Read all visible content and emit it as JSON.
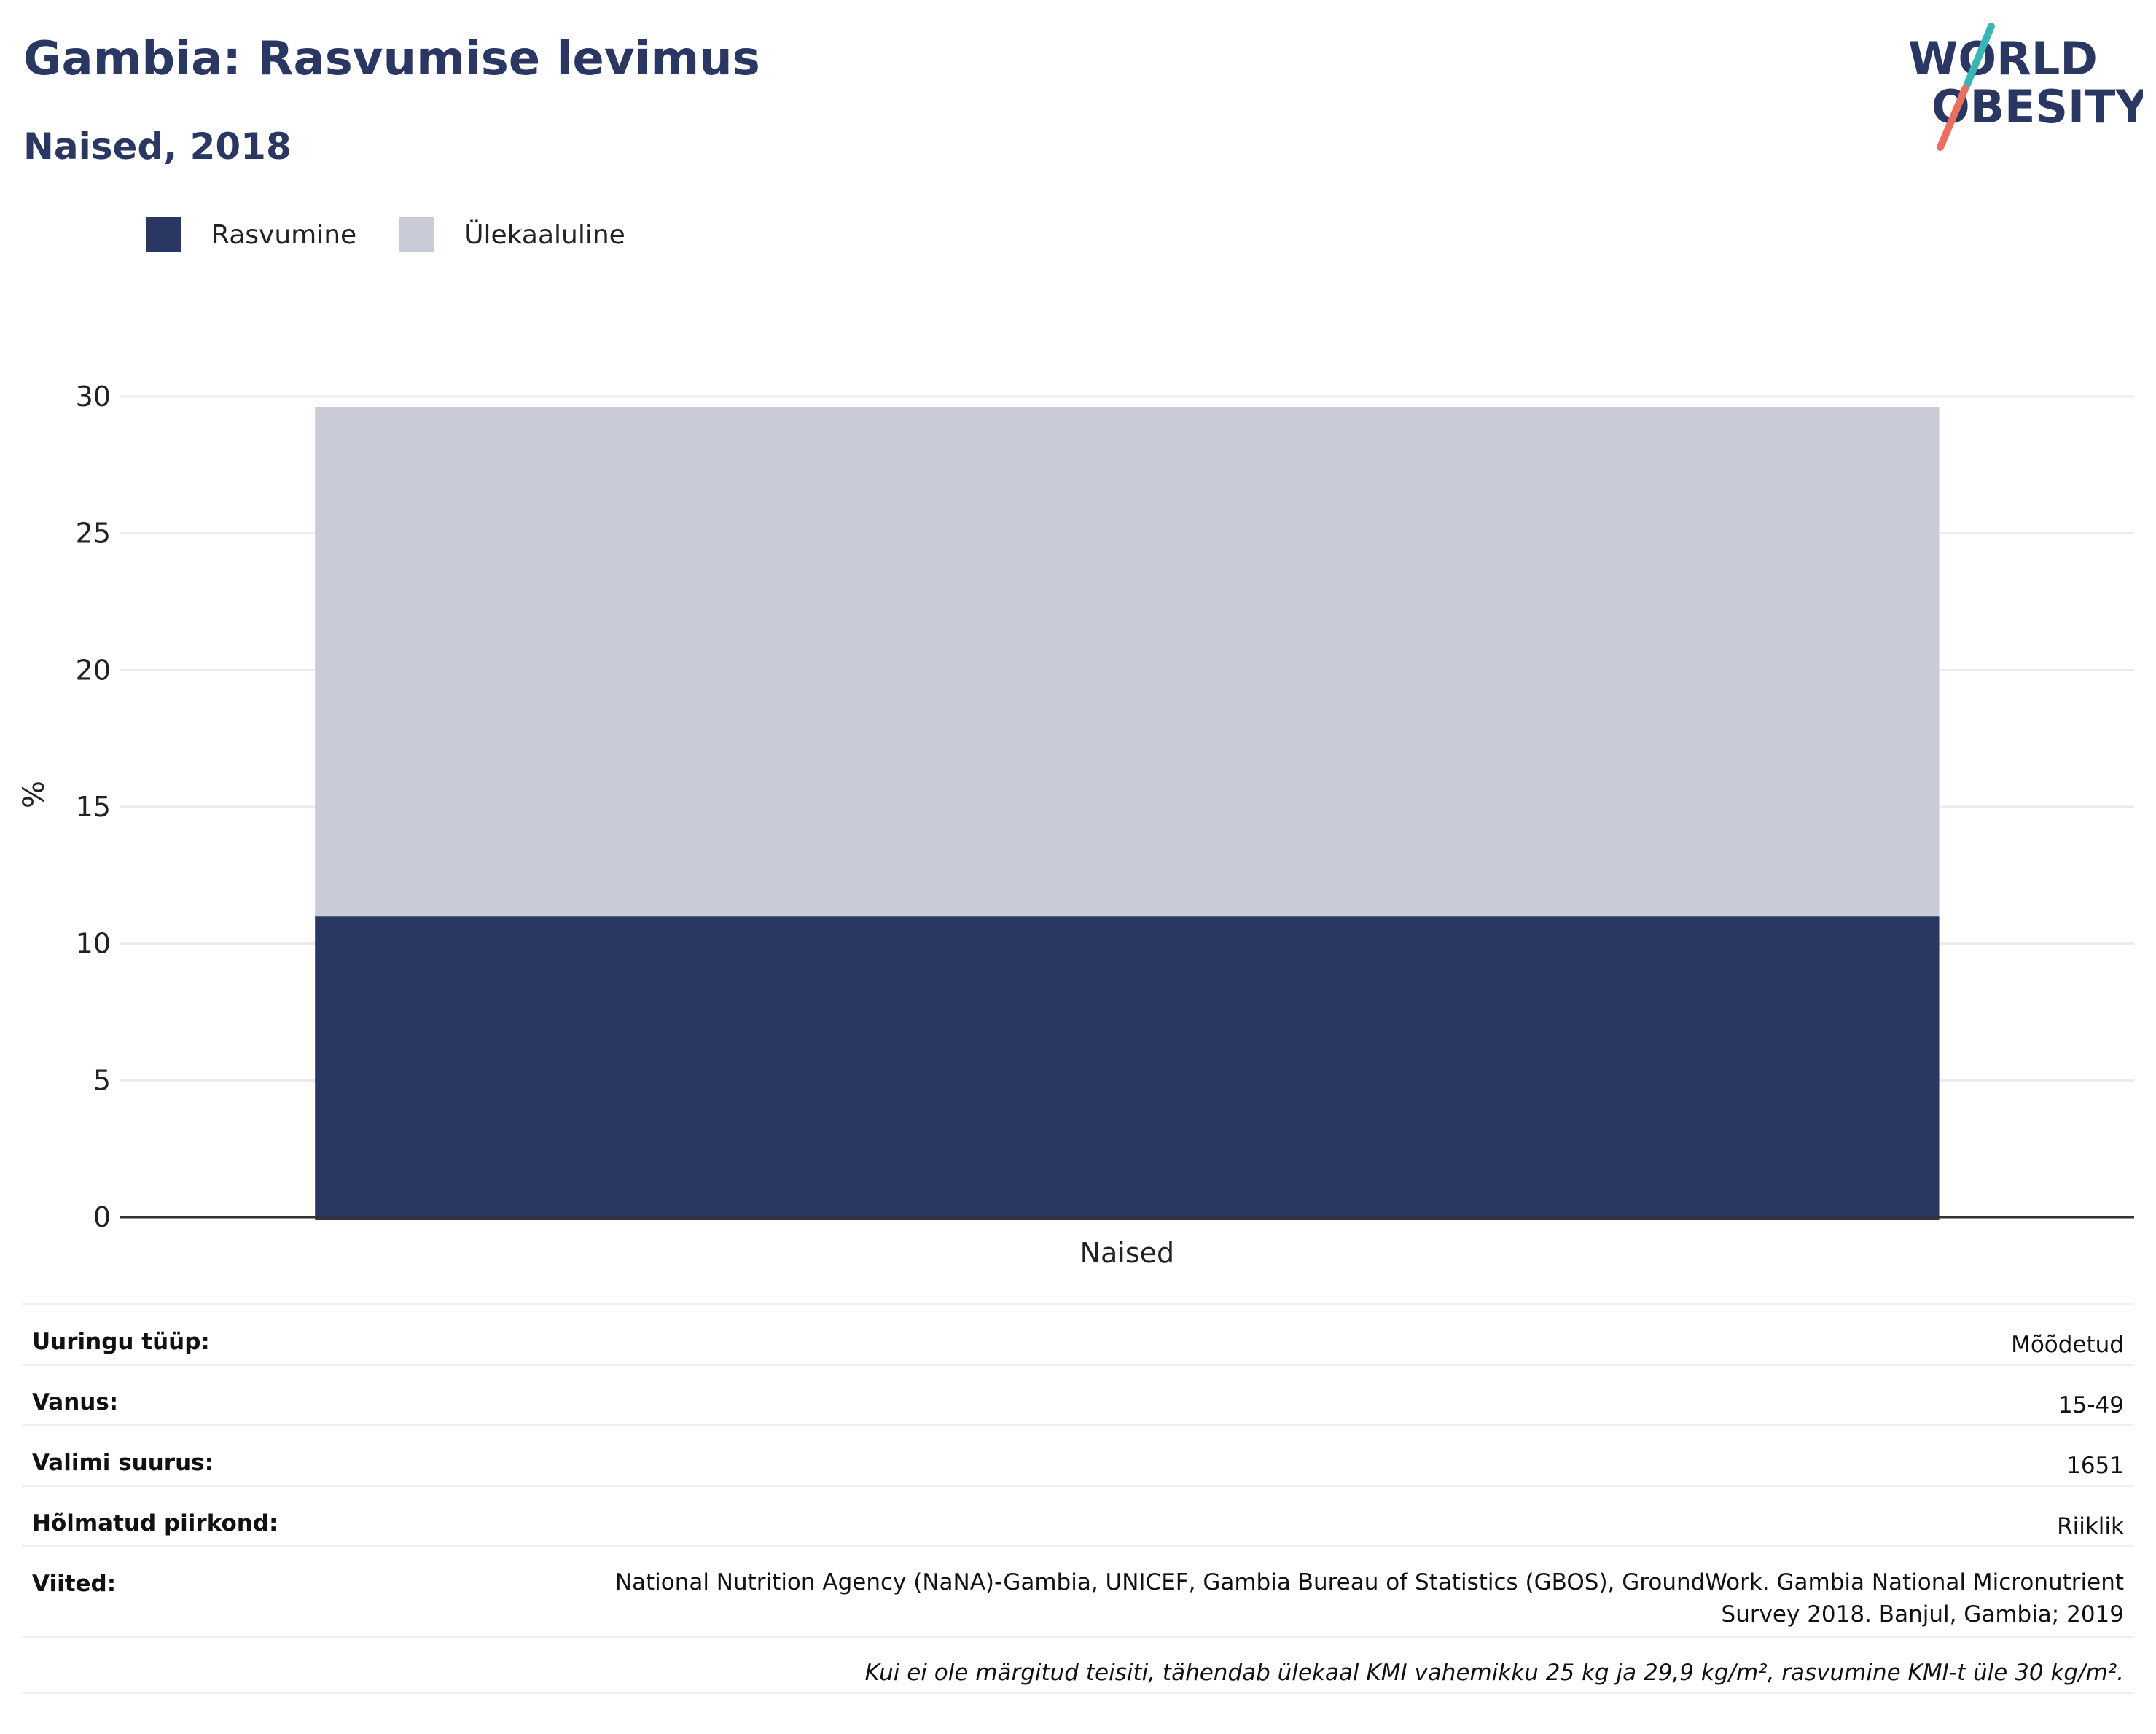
{
  "header": {
    "title": "Gambia: Rasvumise levimus",
    "subtitle": "Naised, 2018"
  },
  "logo": {
    "line1": "WORLD",
    "line2": "OBESITY"
  },
  "colors": {
    "obesity": "#2b3763",
    "overweight": "#c9ccd8",
    "title": "#2b3763",
    "logo_teal": "#3bb4b4",
    "logo_coral": "#e8705f"
  },
  "legend": {
    "items": [
      {
        "label": "Rasvumine",
        "color": "#2b3763"
      },
      {
        "label": "Ülekaaluline",
        "color": "#c9ccd8"
      }
    ]
  },
  "chart_data": {
    "type": "bar",
    "stacked": true,
    "categories": [
      "Naised"
    ],
    "series": [
      {
        "name": "Rasvumine",
        "values": [
          11.0
        ]
      },
      {
        "name": "Ülekaaluline",
        "values": [
          18.6
        ]
      }
    ],
    "ylabel": "%",
    "xlabel": "",
    "ylim": [
      0,
      30
    ],
    "yticks": [
      "0",
      "5",
      "10",
      "15",
      "20",
      "25",
      "30"
    ],
    "grid": true,
    "legend_position": "top-left"
  },
  "info": {
    "rows": [
      {
        "label": "Uuringu tüüp:",
        "value": "Mõõdetud"
      },
      {
        "label": "Vanus:",
        "value": "15-49"
      },
      {
        "label": "Valimi suurus:",
        "value": "1651"
      },
      {
        "label": "Hõlmatud piirkond:",
        "value": "Riiklik"
      }
    ],
    "references_label": "Viited:",
    "references_value": "National Nutrition Agency (NaNA)-Gambia, UNICEF, Gambia Bureau of Statistics (GBOS), GroundWork. Gambia National Micronutrient Survey 2018. Banjul, Gambia; 2019",
    "footnote": "Kui ei ole märgitud teisiti, tähendab ülekaal KMI vahemikku 25 kg ja 29,9 kg/m², rasvumine KMI-t üle 30 kg/m²."
  }
}
